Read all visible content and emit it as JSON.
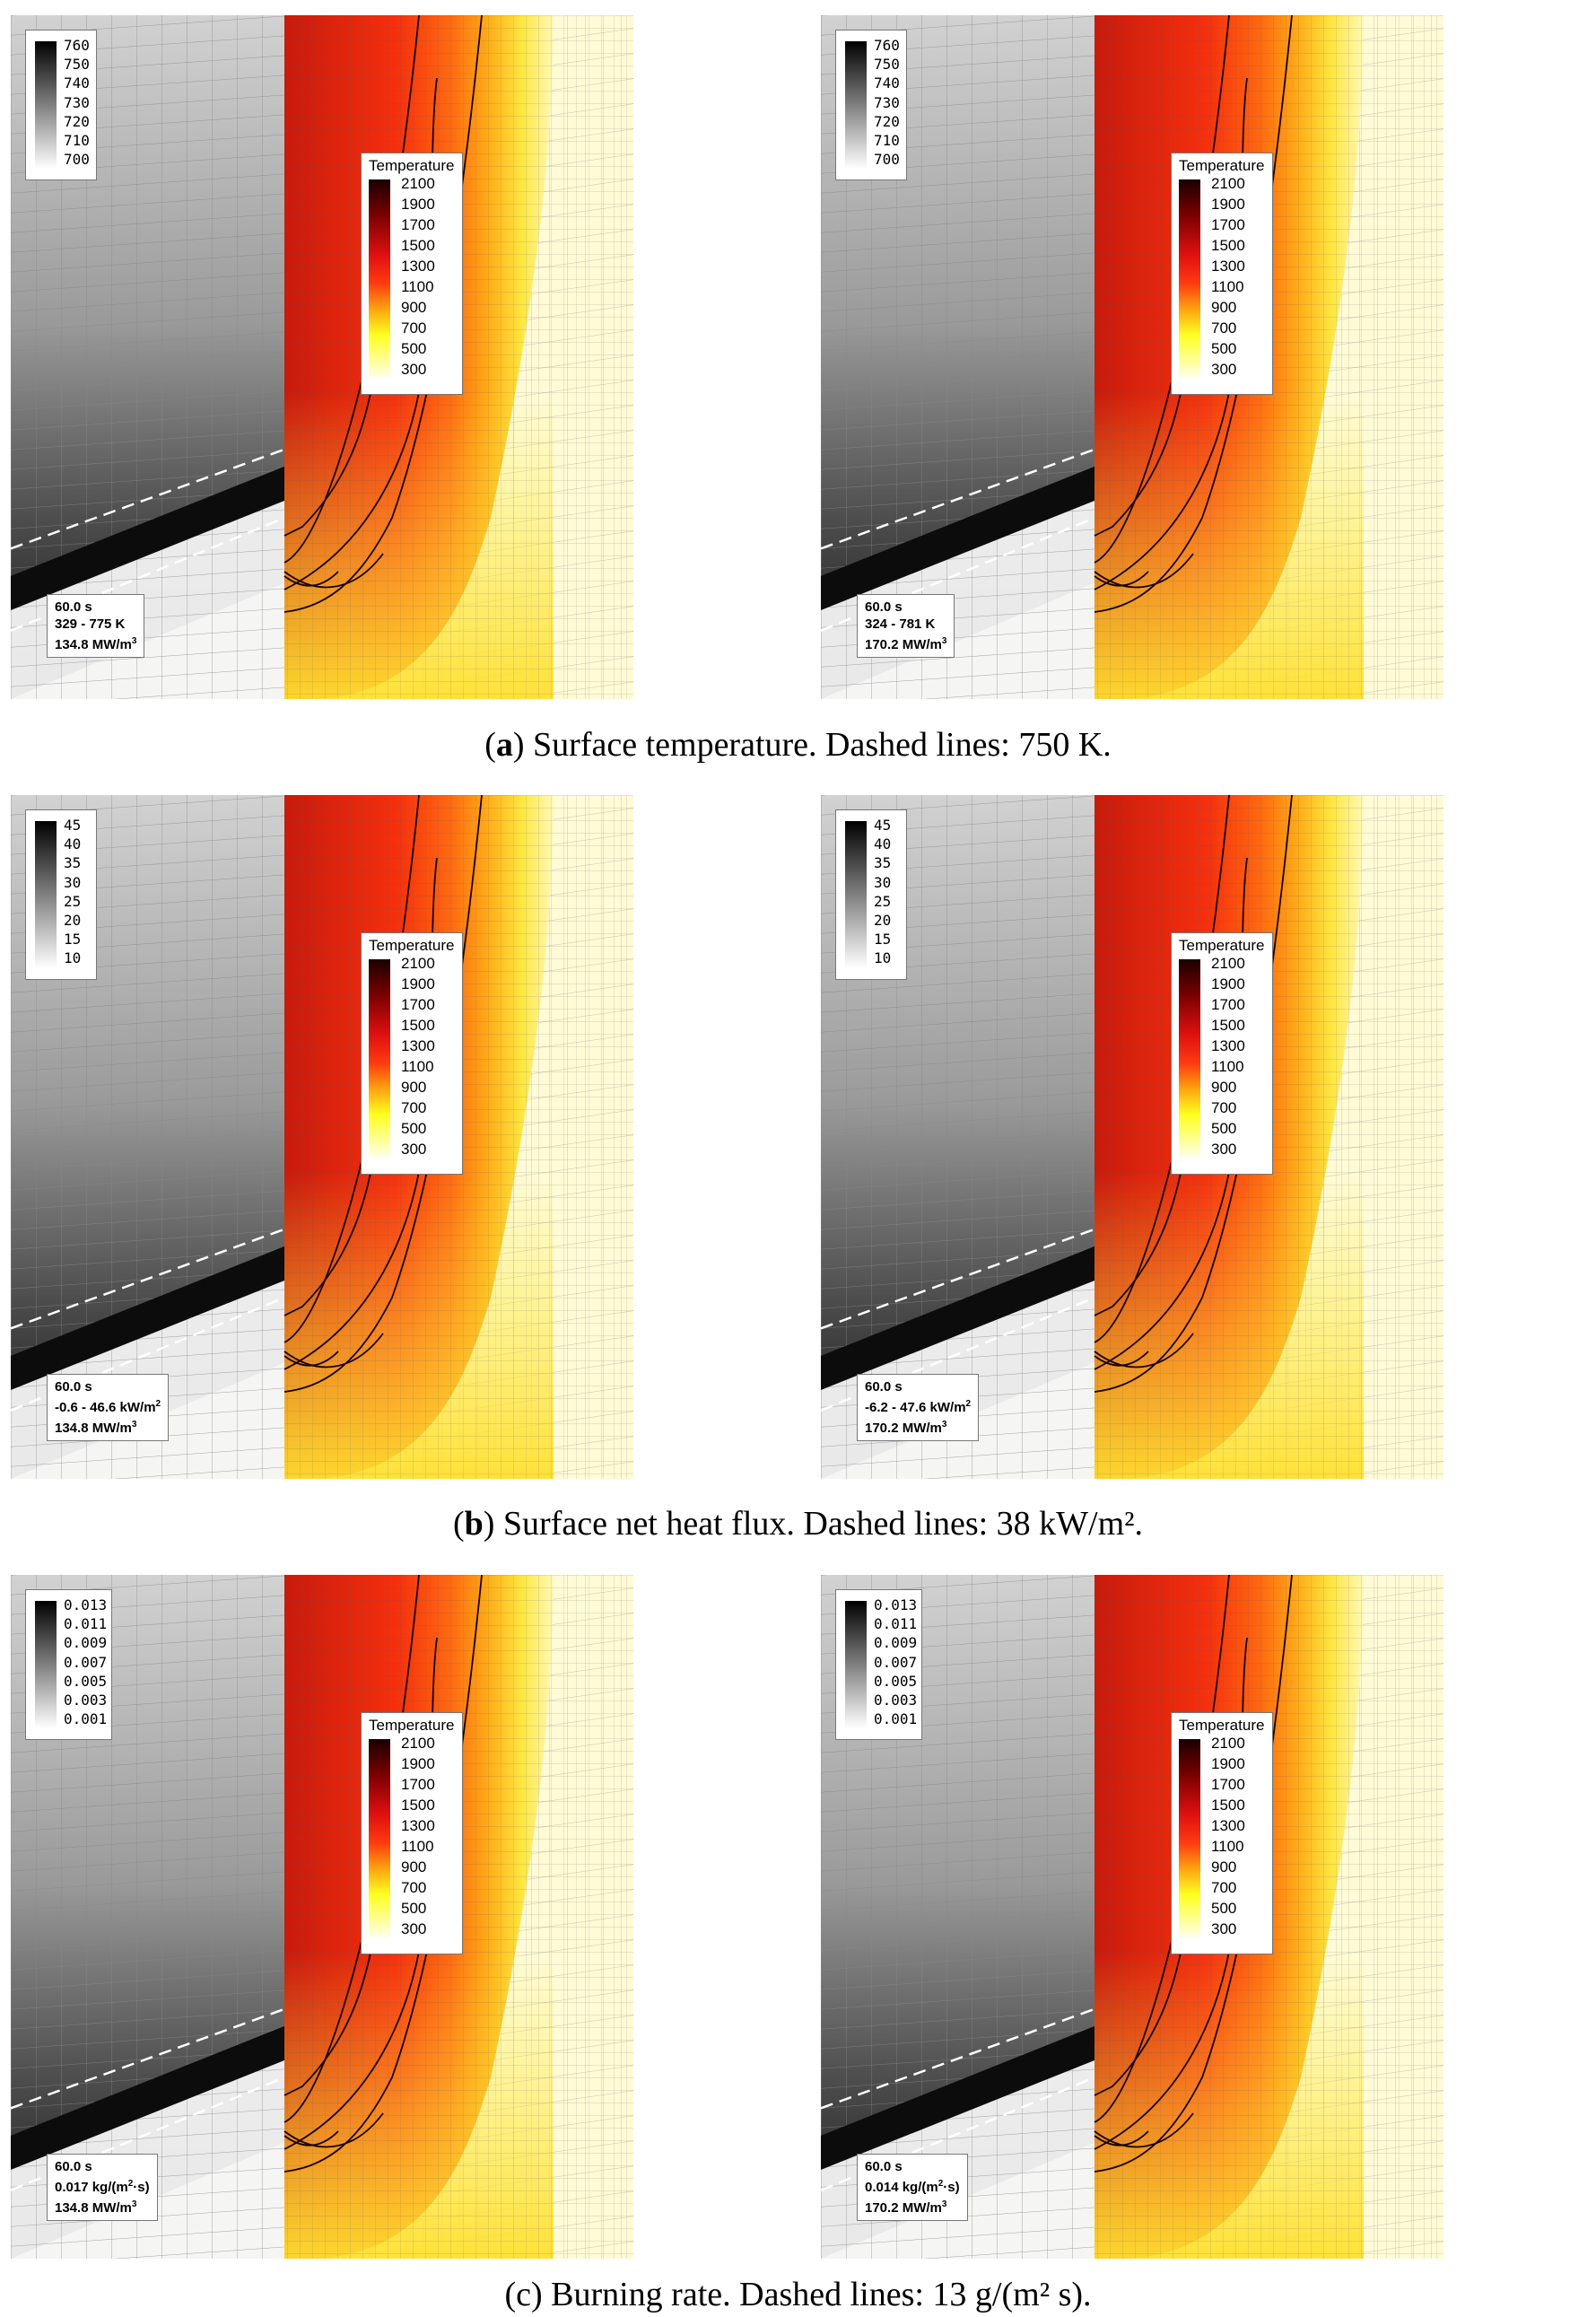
{
  "captions": {
    "a": {
      "letter": "a",
      "text": ") Surface temperature. Dashed lines: 750 K."
    },
    "b": {
      "letter": "b",
      "text": ") Surface net heat flux. Dashed lines: 38 kW/m²."
    },
    "c": {
      "text": "(c) Burning rate. Dashed lines: 13 g/(m² s)."
    }
  },
  "temperature_legend": {
    "title": "Temperature",
    "labels": [
      "2100",
      "1900",
      "1700",
      "1500",
      "1300",
      "1100",
      "900",
      "700",
      "500",
      "300"
    ]
  },
  "panels": [
    {
      "id": "a-left",
      "legend_labels": [
        "760",
        "750",
        "740",
        "730",
        "720",
        "710",
        "700"
      ],
      "info": [
        "60.0 s",
        "329 - 775 K",
        "134.8 MW/m",
        "3"
      ]
    },
    {
      "id": "a-right",
      "legend_labels": [
        "760",
        "750",
        "740",
        "730",
        "720",
        "710",
        "700"
      ],
      "info": [
        "60.0 s",
        "324 - 781 K",
        "170.2 MW/m",
        "3"
      ]
    },
    {
      "id": "b-left",
      "legend_labels": [
        "45",
        "40",
        "35",
        "30",
        "25",
        "20",
        "15",
        "10"
      ],
      "info": [
        "60.0 s",
        "-0.6 - 46.6 kW/m",
        "2",
        "134.8 MW/m",
        "3"
      ]
    },
    {
      "id": "b-right",
      "legend_labels": [
        "45",
        "40",
        "35",
        "30",
        "25",
        "20",
        "15",
        "10"
      ],
      "info": [
        "60.0 s",
        "-6.2 - 47.6 kW/m",
        "2",
        "170.2 MW/m",
        "3"
      ]
    },
    {
      "id": "c-left",
      "legend_labels": [
        "0.013",
        "0.011",
        "0.009",
        "0.007",
        "0.005",
        "0.003",
        "0.001"
      ],
      "info": [
        "60.0 s",
        "0.017 kg/(m",
        "2",
        "·s)",
        "134.8 MW/m",
        "3"
      ]
    },
    {
      "id": "c-right",
      "legend_labels": [
        "0.013",
        "0.011",
        "0.009",
        "0.007",
        "0.005",
        "0.003",
        "0.001"
      ],
      "info": [
        "60.0 s",
        "0.014 kg/(m",
        "2",
        "·s)",
        "170.2 MW/m",
        "3"
      ]
    }
  ]
}
